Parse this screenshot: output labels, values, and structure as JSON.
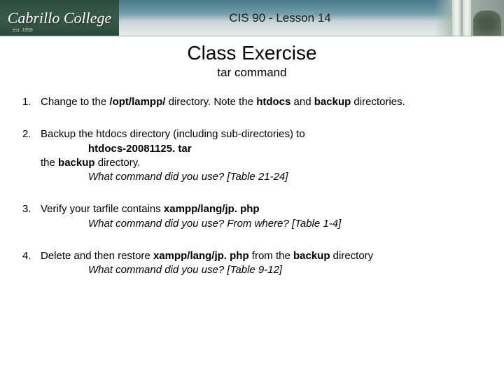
{
  "header": {
    "logo_text": "Cabrillo College",
    "logo_sub": "est. 1959",
    "course": "CIS 90 - Lesson 14"
  },
  "title": "Class Exercise",
  "subtitle": "tar command",
  "items": {
    "i1": {
      "part_a": "Change to the ",
      "bold_a": "/opt/lampp/",
      "part_b": " directory. Note the ",
      "bold_b": "htdocs",
      "part_c": " and ",
      "bold_c": "backup",
      "part_d": " directories."
    },
    "i2": {
      "line1": "Backup the htdocs directory (including sub-directories) to",
      "indent_bold": "htdocs-20081125. tar",
      "line2_a": "the ",
      "line2_bold": "backup",
      "line2_b": " directory.",
      "prompt": "What command did you use? [Table 21-24]"
    },
    "i3": {
      "part_a": "Verify your tarfile contains ",
      "bold_a": "xampp/lang/jp. php",
      "prompt": "What command did you use? From where? [Table 1-4]"
    },
    "i4": {
      "part_a": "Delete and then restore ",
      "bold_a": "xampp/lang/jp. php",
      "part_b": " from the ",
      "bold_b": "backup",
      "part_c": " directory",
      "prompt": "What command  did you use? [Table 9-12]"
    }
  },
  "style": {
    "banner_gradient_top": "#4a7a8a",
    "banner_gradient_bottom": "#e8ede8",
    "logo_bg": "#2a4a3a",
    "title_fontsize": 28,
    "subtitle_fontsize": 17,
    "body_fontsize": 15,
    "text_color": "#000000",
    "background_color": "#ffffff"
  }
}
